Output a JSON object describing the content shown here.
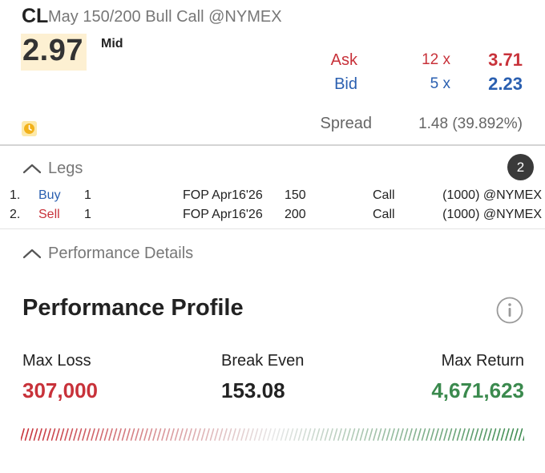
{
  "quote": {
    "symbol": "CL",
    "description": "May 150/200 Bull Call @NYMEX",
    "mid_price": "2.97",
    "mid_label": "Mid",
    "ask": {
      "label": "Ask",
      "size": "12 x",
      "price": "3.71"
    },
    "bid": {
      "label": "Bid",
      "size": "5 x",
      "price": "2.23"
    },
    "spread": {
      "label": "Spread",
      "value": "1.48 (39.892%)"
    },
    "icon": "clock-icon"
  },
  "legs": {
    "title": "Legs",
    "count": "2",
    "rows": [
      {
        "index": "1.",
        "action": "Buy",
        "action_color": "#2a5fb0",
        "qty": "1",
        "type": "FOP Apr16'26",
        "strike": "150",
        "right": "Call",
        "exchange": "(1000) @NYMEX"
      },
      {
        "index": "2.",
        "action": "Sell",
        "action_color": "#c8323a",
        "qty": "1",
        "type": "FOP Apr16'26",
        "strike": "200",
        "right": "Call",
        "exchange": "(1000) @NYMEX"
      }
    ]
  },
  "performance": {
    "details_title": "Performance Details",
    "profile_title": "Performance Profile",
    "max_loss": {
      "label": "Max Loss",
      "value": "307,000"
    },
    "break_even": {
      "label": "Break Even",
      "value": "153.08"
    },
    "max_return": {
      "label": "Max Return",
      "value": "4,671,623"
    }
  },
  "colors": {
    "loss": "#c8323a",
    "gain": "#3b8a4e",
    "bid": "#2a5fb0",
    "mid_highlight": "#fdf0d2"
  }
}
